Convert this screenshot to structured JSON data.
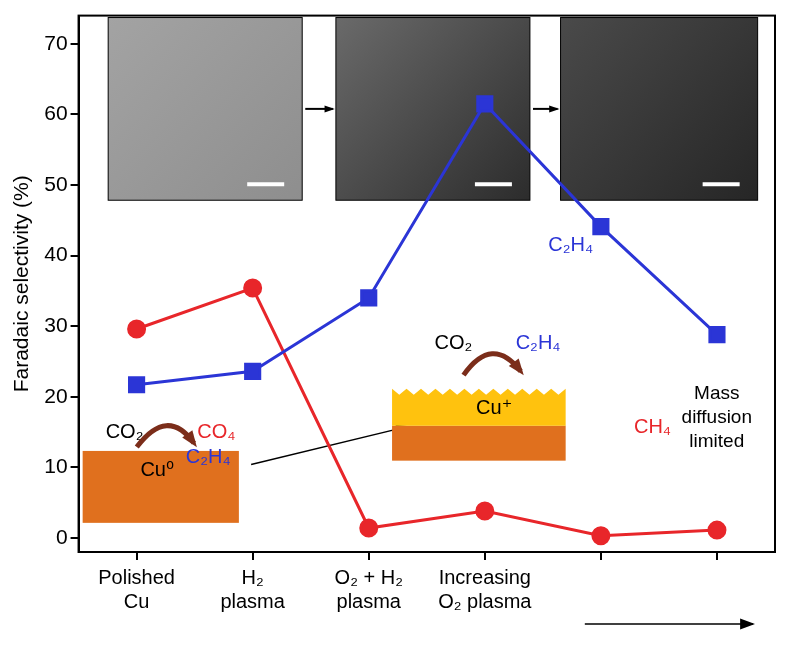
{
  "chart_data": {
    "type": "line",
    "categories": [
      [
        "Polished",
        "Cu"
      ],
      [
        "H₂",
        "plasma"
      ],
      [
        "O₂ + H₂",
        "plasma"
      ],
      [
        "Increasing",
        "O₂ plasma"
      ],
      null,
      null
    ],
    "series": [
      {
        "name": "C₂H₄",
        "color": "#2b35d6",
        "marker": "square",
        "values": [
          21.7,
          23.6,
          34.0,
          61.5,
          44.1,
          28.8
        ]
      },
      {
        "name": "CH₄",
        "color": "#e8262a",
        "marker": "circle",
        "values": [
          29.6,
          35.4,
          1.4,
          3.8,
          0.3,
          1.1
        ]
      }
    ],
    "y_label": "Faradaic selectivity (%)",
    "ylim": [
      -2,
      74
    ],
    "yticks": [
      0,
      10,
      20,
      30,
      40,
      50,
      60,
      70
    ],
    "grid": false,
    "annotations": [
      "Mass diffusion limited"
    ],
    "insets": [
      {
        "label": "Cu⁰",
        "reactant": "CO₂",
        "products": [
          {
            "text": "CO₄",
            "color": "#e8262a"
          },
          {
            "text": "C₂H₄",
            "color": "#2b35d6"
          }
        ]
      },
      {
        "label": "Cu⁺",
        "reactant": "CO₂",
        "products": [
          {
            "text": "C₂H₄",
            "color": "#2b35d6"
          }
        ]
      }
    ]
  }
}
